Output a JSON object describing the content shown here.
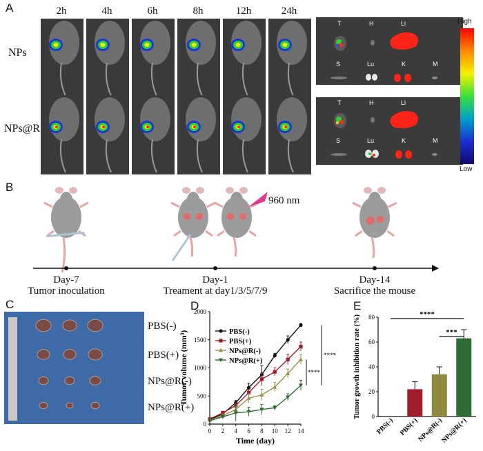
{
  "panelA": {
    "letter": "A",
    "timepoints": [
      "2h",
      "4h",
      "6h",
      "8h",
      "12h",
      "24h"
    ],
    "rows": [
      "NPs",
      "NPs@R"
    ],
    "organs": [
      "T",
      "H",
      "Li",
      "S",
      "Lu",
      "K",
      "M"
    ],
    "colorbar": {
      "high": "High",
      "low": "Low"
    }
  },
  "panelB": {
    "letter": "B",
    "laser": "960 nm",
    "events": [
      {
        "day": "Day-7",
        "desc": "Tumor inoculation"
      },
      {
        "day": "Day-1",
        "desc": "Treament at day1/3/5/7/9"
      },
      {
        "day": "Day-14",
        "desc": "Sacrifice the mouse"
      }
    ]
  },
  "panelC": {
    "letter": "C",
    "groups": [
      "PBS(-)",
      "PBS(+)",
      "NPs@R(-)",
      "NPs@R(+)"
    ]
  },
  "chart_data": [
    {
      "type": "line",
      "panel": "D",
      "xlabel": "Time (day)",
      "ylabel": "Tumor volume (mm³)",
      "x": [
        0,
        2,
        4,
        6,
        8,
        10,
        12,
        14
      ],
      "xlim": [
        0,
        14
      ],
      "ylim": [
        0,
        2000
      ],
      "yticks": [
        0,
        500,
        1000,
        1500,
        2000
      ],
      "series": [
        {
          "name": "PBS(-)",
          "color": "#111111",
          "marker": "circle",
          "values": [
            80,
            180,
            380,
            650,
            880,
            1220,
            1500,
            1760
          ],
          "errors": [
            20,
            30,
            40,
            80,
            160,
            40,
            70,
            30
          ]
        },
        {
          "name": "PBS(+)",
          "color": "#a11c2b",
          "marker": "square",
          "values": [
            90,
            200,
            330,
            560,
            800,
            930,
            1150,
            1380
          ],
          "errors": [
            20,
            30,
            50,
            60,
            120,
            70,
            90,
            80
          ]
        },
        {
          "name": "NPs@R(-)",
          "color": "#9c8d46",
          "marker": "triangle-up",
          "values": [
            70,
            150,
            260,
            460,
            520,
            660,
            900,
            1150
          ],
          "errors": [
            20,
            30,
            60,
            80,
            100,
            80,
            80,
            90
          ]
        },
        {
          "name": "NPs@R(+)",
          "color": "#2e6b35",
          "marker": "triangle-down",
          "values": [
            60,
            130,
            200,
            220,
            260,
            290,
            480,
            690
          ],
          "errors": [
            20,
            30,
            150,
            80,
            90,
            40,
            60,
            90
          ]
        }
      ],
      "significance": [
        "****",
        "****"
      ]
    },
    {
      "type": "bar",
      "panel": "E",
      "ylabel": "Tumor growth inhibition rate (%)",
      "categories": [
        "PBS(-)",
        "PBS(+)",
        "NPs@R(-)",
        "NPs@R(+)"
      ],
      "values": [
        0,
        22,
        34,
        63
      ],
      "errors": [
        0,
        6,
        6,
        7
      ],
      "colors": [
        "#111111",
        "#a11c2b",
        "#8f8a3f",
        "#2e6b35"
      ],
      "ylim": [
        0,
        80
      ],
      "yticks": [
        0,
        20,
        40,
        60,
        80
      ],
      "significance": [
        "****",
        "***"
      ]
    }
  ]
}
